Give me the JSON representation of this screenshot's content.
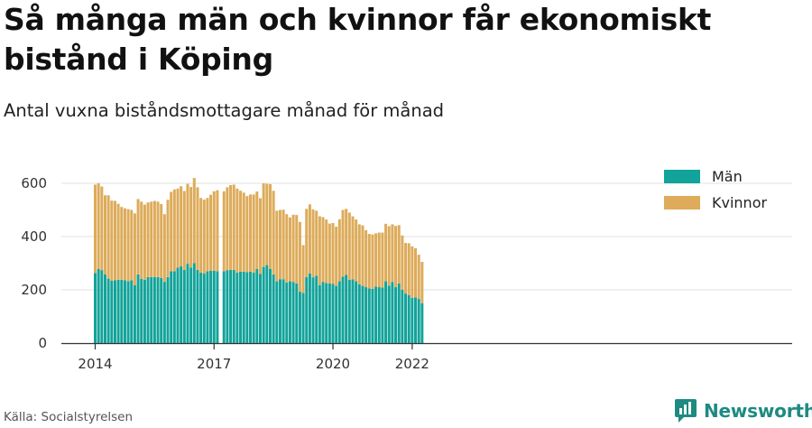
{
  "header": {
    "title": "Så många män och kvinnor får ekonomiskt bistånd i Köping",
    "subtitle": "Antal vuxna biståndsmottagare månad för månad"
  },
  "footer": {
    "source": "Källa: Socialstyrelsen",
    "brand": "Newsworthy"
  },
  "colors": {
    "man": "#12a39a",
    "kvinnor": "#ddab5a",
    "grid": "#e0e0e0",
    "axis": "#333333",
    "brand": "#1e8a82"
  },
  "chart_data": {
    "type": "bar",
    "stacked": true,
    "x_start": "2014-01",
    "x_ticks": [
      "2014",
      "2017",
      "2020",
      "2022"
    ],
    "y_ticks": [
      0,
      200,
      400,
      600
    ],
    "ylim": [
      0,
      640
    ],
    "grid": true,
    "legend_position": "top-right",
    "missing_months": [
      "2017-01"
    ],
    "series": [
      {
        "name": "Män",
        "color": "#12a39a",
        "values": [
          263,
          278,
          274,
          258,
          242,
          235,
          236,
          238,
          238,
          236,
          233,
          236,
          218,
          258,
          241,
          238,
          248,
          248,
          248,
          248,
          245,
          230,
          248,
          270,
          270,
          283,
          288,
          275,
          298,
          283,
          300,
          275,
          265,
          261,
          270,
          272,
          272,
          270,
          null,
          270,
          274,
          275,
          275,
          265,
          268,
          268,
          266,
          268,
          265,
          278,
          260,
          286,
          293,
          279,
          258,
          232,
          240,
          240,
          227,
          232,
          230,
          224,
          193,
          188,
          248,
          262,
          247,
          253,
          218,
          230,
          226,
          224,
          222,
          215,
          232,
          249,
          256,
          238,
          239,
          232,
          221,
          215,
          210,
          205,
          204,
          212,
          210,
          209,
          232,
          216,
          230,
          210,
          224,
          200,
          186,
          180,
          170,
          172,
          166,
          150
        ]
      },
      {
        "name": "Kvinnor",
        "color": "#ddab5a",
        "values": [
          332,
          322,
          314,
          297,
          313,
          300,
          298,
          285,
          273,
          270,
          270,
          264,
          269,
          283,
          290,
          282,
          280,
          283,
          286,
          283,
          277,
          254,
          290,
          298,
          307,
          297,
          301,
          296,
          300,
          303,
          320,
          310,
          280,
          278,
          275,
          285,
          298,
          304,
          null,
          300,
          311,
          318,
          320,
          315,
          304,
          297,
          286,
          290,
          293,
          291,
          284,
          314,
          305,
          318,
          314,
          265,
          260,
          261,
          257,
          240,
          252,
          257,
          262,
          180,
          256,
          259,
          255,
          244,
          258,
          243,
          238,
          225,
          229,
          222,
          233,
          251,
          248,
          252,
          237,
          232,
          225,
          227,
          214,
          205,
          204,
          200,
          205,
          206,
          216,
          223,
          216,
          230,
          219,
          204,
          190,
          195,
          193,
          184,
          166,
          155
        ]
      }
    ]
  }
}
